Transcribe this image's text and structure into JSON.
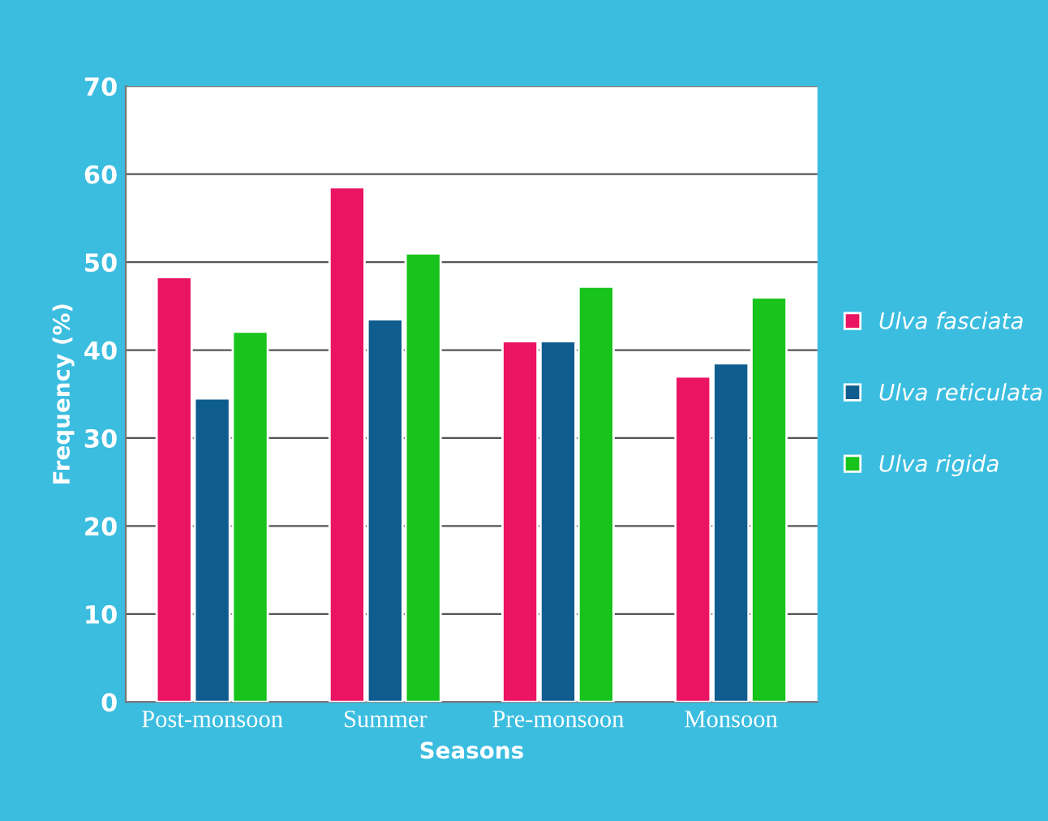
{
  "chart_data": {
    "type": "bar",
    "xlabel": "Seasons",
    "ylabel": "Frequency (%)",
    "categories": [
      "Post-monsoon",
      "Summer",
      "Pre-monsoon",
      "Monsoon"
    ],
    "series": [
      {
        "name": "Ulva fasciata",
        "color": "#ea1463",
        "values": [
          48.3,
          58.5,
          41,
          37
        ]
      },
      {
        "name": "Ulva reticulata",
        "color": "#0f5c8e",
        "values": [
          34.5,
          43.5,
          41,
          38.5
        ]
      },
      {
        "name": "Ulva rigida",
        "color": "#18c41c",
        "values": [
          42.1,
          51,
          47.2,
          46
        ]
      }
    ],
    "ylim": [
      0,
      70
    ],
    "yticks": [
      0,
      10,
      20,
      30,
      40,
      50,
      60,
      70
    ],
    "grid": "y",
    "legend": "right"
  }
}
